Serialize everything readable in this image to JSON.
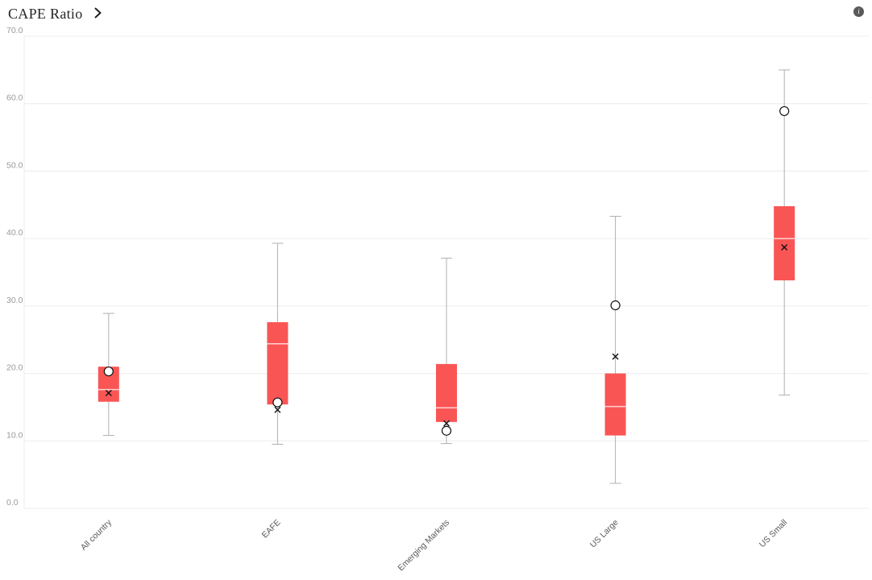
{
  "header": {
    "title": "CAPE Ratio",
    "info_glyph": "i"
  },
  "chart_data": {
    "type": "boxplot",
    "title": "CAPE Ratio",
    "categories": [
      "All country",
      "EAFE",
      "Emerging Markets",
      "US Large",
      "US Small"
    ],
    "series": [
      {
        "category": "All country",
        "whisker_low": 10.8,
        "q1": 15.8,
        "median": 17.6,
        "q3": 21.0,
        "whisker_high": 28.9,
        "mean": 17.1,
        "current": 20.3
      },
      {
        "category": "EAFE",
        "whisker_low": 9.5,
        "q1": 15.4,
        "median": 24.4,
        "q3": 27.6,
        "whisker_high": 39.3,
        "mean": 14.6,
        "current": 15.7
      },
      {
        "category": "Emerging Markets",
        "whisker_low": 9.6,
        "q1": 12.8,
        "median": 14.9,
        "q3": 21.4,
        "whisker_high": 37.1,
        "mean": 12.6,
        "current": 11.5
      },
      {
        "category": "US Large",
        "whisker_low": 3.7,
        "q1": 10.8,
        "median": 15.1,
        "q3": 20.0,
        "whisker_high": 43.3,
        "mean": 22.5,
        "current": 30.1
      },
      {
        "category": "US Small",
        "whisker_low": 16.8,
        "q1": 33.8,
        "median": 40.0,
        "q3": 44.8,
        "whisker_high": 65.0,
        "mean": 38.7,
        "current": 58.9
      }
    ],
    "markers": {
      "mean": "x-cross",
      "current": "open-circle"
    },
    "ylim": [
      0,
      70
    ],
    "ytick_step": 10,
    "ytick_labels": [
      "0.0",
      "10.0",
      "20.0",
      "30.0",
      "40.0",
      "50.0",
      "60.0",
      "70.0"
    ],
    "xlabel": "",
    "ylabel": "",
    "grid": true,
    "legend": "none",
    "colors": {
      "box_fill": "#fa5555",
      "median": "#ffd2d2",
      "whisker": "#b0b0b0",
      "grid": "#ececec",
      "y_tick_text": "#999999",
      "x_tick_text": "#595959",
      "marker": "#111111"
    }
  }
}
